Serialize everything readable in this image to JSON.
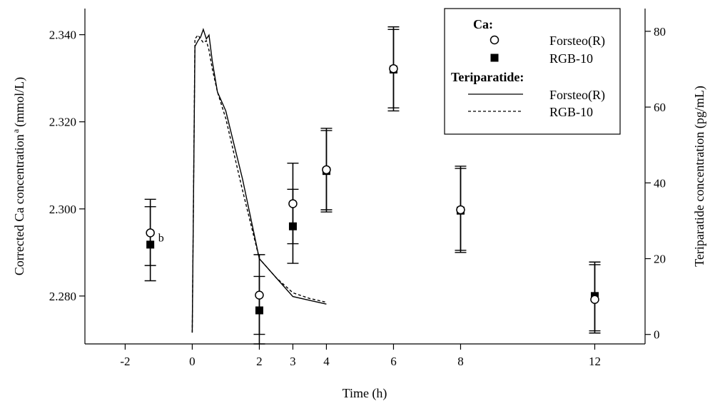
{
  "chart_data": {
    "type": "scatter",
    "xlabel": "Time (h)",
    "ylabel_left": "Corrected Ca concentration",
    "ylabel_left_super": "a",
    "ylabel_left_unit": "(mmol/L)",
    "ylabel_right": "Teriparatide concentration (pg/mL)",
    "xlim": [
      -3.2,
      13.5
    ],
    "ylim_left": [
      2.269,
      2.346
    ],
    "ylim_right": [
      -2.5,
      86
    ],
    "x_ticks": [
      -2,
      0,
      2,
      3,
      4,
      6,
      8,
      12
    ],
    "x_tick_labels": [
      "-2",
      "0",
      "2",
      "3",
      "4",
      "6",
      "8",
      "12"
    ],
    "y_left_ticks": [
      2.28,
      2.3,
      2.32,
      2.34
    ],
    "y_left_tick_labels": [
      "2.280",
      "2.300",
      "2.320",
      "2.340"
    ],
    "y_right_ticks": [
      0,
      20,
      40,
      60,
      80
    ],
    "y_right_tick_labels": [
      "0",
      "20",
      "40",
      "60",
      "80"
    ],
    "annotation": {
      "x": -1.1,
      "y": 2.2935,
      "text": "b"
    },
    "legend": {
      "position": "top-right",
      "ca_header": "Ca:",
      "teriparatide_header": "Teriparatide:",
      "entries": [
        {
          "group": "ca",
          "label": "Forsteo(R)",
          "marker": "open-circle"
        },
        {
          "group": "ca",
          "label": "RGB-10",
          "marker": "filled-square"
        },
        {
          "group": "teriparatide",
          "label": "Forsteo(R)",
          "line": "solid"
        },
        {
          "group": "teriparatide",
          "label": "RGB-10",
          "line": "dashed"
        }
      ]
    },
    "ca_series": [
      {
        "name": "Forsteo(R)",
        "marker": "open-circle",
        "axis": "left",
        "points": [
          {
            "x": -1.25,
            "y": 2.2945,
            "lo": 2.287,
            "hi": 2.3022
          },
          {
            "x": 2,
            "y": 2.2802,
            "lo": 2.2712,
            "hi": 2.2895
          },
          {
            "x": 3,
            "y": 2.3012,
            "lo": 2.292,
            "hi": 2.3105
          },
          {
            "x": 4,
            "y": 2.309,
            "lo": 2.2998,
            "hi": 2.3185
          },
          {
            "x": 6,
            "y": 2.3322,
            "lo": 2.3232,
            "hi": 2.3418
          },
          {
            "x": 8,
            "y": 2.2998,
            "lo": 2.2905,
            "hi": 2.3098
          },
          {
            "x": 12,
            "y": 2.2792,
            "lo": 2.272,
            "hi": 2.2878
          }
        ]
      },
      {
        "name": "RGB-10",
        "marker": "filled-square",
        "axis": "left",
        "points": [
          {
            "x": -1.25,
            "y": 2.2918,
            "lo": 2.2835,
            "hi": 2.3005
          },
          {
            "x": 2,
            "y": 2.2767,
            "lo": 2.269,
            "hi": 2.2845
          },
          {
            "x": 3,
            "y": 2.296,
            "lo": 2.2875,
            "hi": 2.3045
          },
          {
            "x": 4,
            "y": 2.3087,
            "lo": 2.2993,
            "hi": 2.318
          },
          {
            "x": 6,
            "y": 2.332,
            "lo": 2.3225,
            "hi": 2.3412
          },
          {
            "x": 8,
            "y": 2.2996,
            "lo": 2.29,
            "hi": 2.3093
          },
          {
            "x": 12,
            "y": 2.28,
            "lo": 2.2715,
            "hi": 2.2872
          }
        ]
      }
    ],
    "teriparatide_series": [
      {
        "name": "Forsteo(R)",
        "line": "solid",
        "axis": "right",
        "points": [
          [
            0,
            0.5
          ],
          [
            0.08,
            76
          ],
          [
            0.17,
            77.5
          ],
          [
            0.25,
            78.5
          ],
          [
            0.33,
            80.5
          ],
          [
            0.42,
            78
          ],
          [
            0.5,
            79
          ],
          [
            0.6,
            72
          ],
          [
            0.75,
            64
          ],
          [
            1,
            59
          ],
          [
            1.5,
            41
          ],
          [
            2,
            20
          ],
          [
            2.5,
            15
          ],
          [
            3,
            10
          ],
          [
            3.5,
            9
          ],
          [
            4,
            8
          ]
        ]
      },
      {
        "name": "RGB-10",
        "line": "dashed",
        "axis": "right",
        "points": [
          [
            0,
            0.5
          ],
          [
            0.08,
            78
          ],
          [
            0.17,
            79
          ],
          [
            0.25,
            78
          ],
          [
            0.33,
            77
          ],
          [
            0.42,
            77.5
          ],
          [
            0.5,
            75
          ],
          [
            0.6,
            70
          ],
          [
            0.75,
            64
          ],
          [
            1,
            57
          ],
          [
            1.5,
            38
          ],
          [
            2,
            20
          ],
          [
            2.5,
            15
          ],
          [
            3,
            11
          ],
          [
            3.5,
            9.5
          ],
          [
            4,
            8.5
          ]
        ]
      }
    ]
  }
}
